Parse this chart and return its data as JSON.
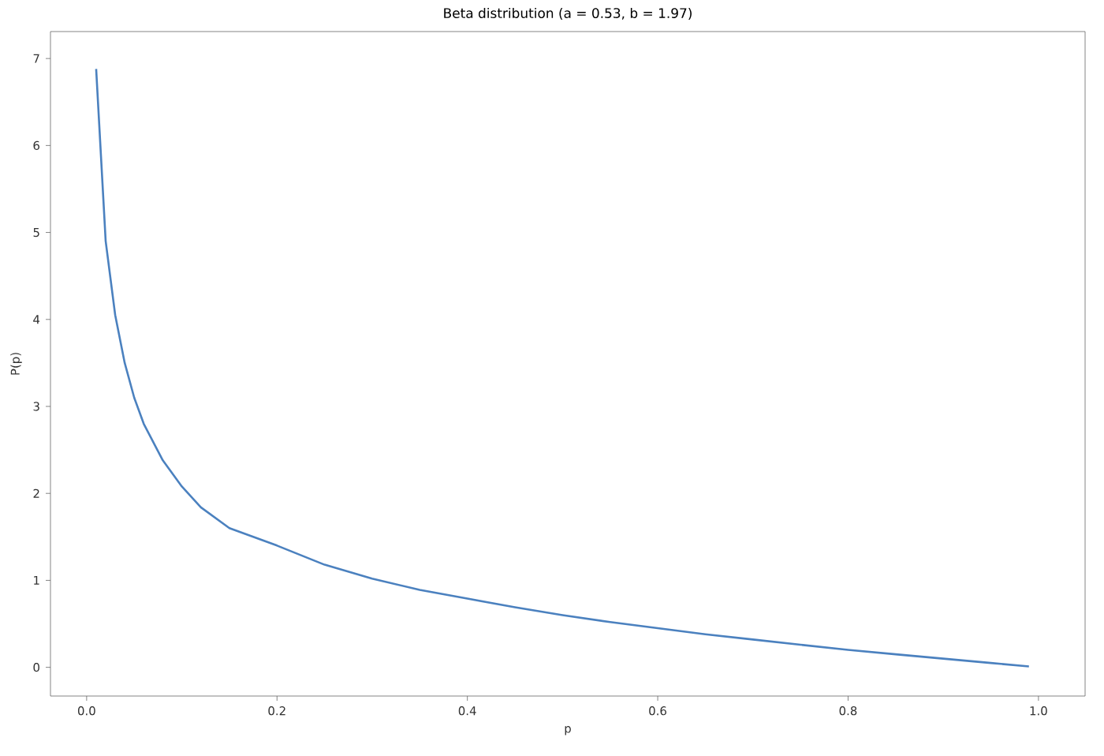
{
  "chart_data": {
    "type": "line",
    "title": "Beta distribution (a = 0.53, b  = 1.97)",
    "xlabel": "p",
    "ylabel": "P(p)",
    "x": [
      0.01,
      0.02,
      0.03,
      0.04,
      0.05,
      0.06,
      0.08,
      0.1,
      0.12,
      0.15,
      0.2,
      0.25,
      0.3,
      0.35,
      0.4,
      0.45,
      0.5,
      0.55,
      0.6,
      0.65,
      0.7,
      0.75,
      0.8,
      0.85,
      0.9,
      0.95,
      0.99
    ],
    "series": [
      {
        "color": "#4b81bf",
        "values": [
          6.88,
          4.9,
          4.05,
          3.5,
          3.1,
          2.8,
          2.38,
          2.08,
          1.84,
          1.6,
          1.4,
          1.18,
          1.02,
          0.89,
          0.79,
          0.69,
          0.6,
          0.52,
          0.45,
          0.38,
          0.32,
          0.26,
          0.2,
          0.15,
          0.1,
          0.05,
          0.01
        ]
      }
    ],
    "xlim": [
      -0.038,
      1.049
    ],
    "ylim": [
      -0.33,
      7.31
    ],
    "xticks": [
      {
        "value": 0,
        "label": "0.0"
      },
      {
        "value": 0.2,
        "label": "0.2"
      },
      {
        "value": 0.4,
        "label": "0.4"
      },
      {
        "value": 0.6,
        "label": "0.6"
      },
      {
        "value": 0.8,
        "label": "0.8"
      },
      {
        "value": 1,
        "label": "1.0"
      }
    ],
    "yticks": [
      0,
      1,
      2,
      3,
      4,
      5,
      6,
      7
    ],
    "grid": false,
    "marker": "none",
    "line_style": "solid"
  }
}
